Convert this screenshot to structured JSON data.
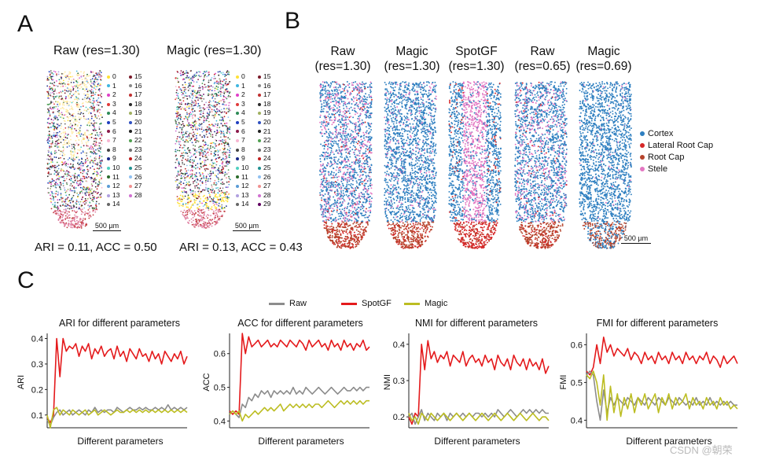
{
  "panel_a": {
    "letter": "A",
    "raw_title": "Raw (res=1.30)",
    "magic_title": "Magic (res=1.30)",
    "raw_metric": "ARI = 0.11, ACC =  0.50",
    "magic_metric": "ARI = 0.13, ACC =  0.43",
    "scale": "500 µm",
    "raw_legend_col1": [
      "0",
      "1",
      "2",
      "3",
      "4",
      "5",
      "6",
      "7",
      "8",
      "9",
      "10",
      "11",
      "12",
      "13",
      "14"
    ],
    "raw_legend_col2": [
      "15",
      "16",
      "17",
      "18",
      "19",
      "20",
      "21",
      "22",
      "23",
      "24",
      "25",
      "26",
      "27",
      "28"
    ],
    "magic_legend_col1": [
      "0",
      "1",
      "2",
      "3",
      "4",
      "5",
      "6",
      "7",
      "8",
      "9",
      "10",
      "11",
      "12",
      "13",
      "14"
    ],
    "magic_legend_col2": [
      "15",
      "16",
      "17",
      "18",
      "19",
      "20",
      "21",
      "22",
      "23",
      "24",
      "25",
      "26",
      "27",
      "28",
      "29"
    ],
    "cluster_colors": [
      "#ffe135",
      "#3fb6e0",
      "#e040c8",
      "#e03a3a",
      "#2e8b57",
      "#1f3fbf",
      "#8b1a4a",
      "#f7b6d2",
      "#444444",
      "#1a2a8a",
      "#4fd0c0",
      "#2a6b2a",
      "#5a9bd6",
      "#b0a0e0",
      "#666666",
      "#7a1a2a",
      "#888888",
      "#c03030",
      "#2a2a2a",
      "#a0b060",
      "#3050c0",
      "#202020",
      "#50a050",
      "#707070",
      "#c02020",
      "#209090",
      "#90c0f0",
      "#f09090",
      "#d070d0",
      "#600060"
    ]
  },
  "panel_b": {
    "letter": "B",
    "columns": [
      {
        "line1": "Raw",
        "line2": "(res=1.30)"
      },
      {
        "line1": "Magic",
        "line2": "(res=1.30)"
      },
      {
        "line1": "SpotGF",
        "line2": "(res=1.30)"
      },
      {
        "line1": "Raw",
        "line2": "(res=0.65)"
      },
      {
        "line1": "Magic",
        "line2": "(res=0.69)"
      }
    ],
    "legend": [
      {
        "label": "Cortex",
        "color": "#2e7fc0"
      },
      {
        "label": "Lateral Root Cap",
        "color": "#d62728"
      },
      {
        "label": "Root Cap",
        "color": "#b5432b"
      },
      {
        "label": "Stele",
        "color": "#e377c2"
      }
    ],
    "scale": "500 µm"
  },
  "panel_c": {
    "letter": "C",
    "legend": [
      {
        "label": "Raw",
        "color": "#8c8c8c"
      },
      {
        "label": "SpotGF",
        "color": "#e41a1c"
      },
      {
        "label": "Magic",
        "color": "#bcbd22"
      }
    ],
    "xlabel": "Different parameters"
  },
  "chart_data": [
    {
      "type": "line",
      "title": "ARI for different parameters",
      "xlabel": "Different parameters",
      "ylabel": "ARI",
      "ylim": [
        0.05,
        0.42
      ],
      "yticks": [
        0.1,
        0.2,
        0.3,
        0.4
      ],
      "ytick_labels": [
        "0.1",
        "0.2",
        "0.3",
        "0.4"
      ],
      "series": [
        {
          "name": "SpotGF",
          "color": "#e41a1c",
          "values": [
            0.09,
            0.07,
            0.1,
            0.4,
            0.25,
            0.4,
            0.35,
            0.37,
            0.36,
            0.38,
            0.33,
            0.37,
            0.35,
            0.38,
            0.32,
            0.36,
            0.34,
            0.37,
            0.33,
            0.35,
            0.36,
            0.32,
            0.37,
            0.33,
            0.35,
            0.31,
            0.36,
            0.34,
            0.32,
            0.36,
            0.33,
            0.34,
            0.31,
            0.35,
            0.32,
            0.34,
            0.3,
            0.35,
            0.33,
            0.31,
            0.34,
            0.32,
            0.35,
            0.3,
            0.33
          ]
        },
        {
          "name": "Raw",
          "color": "#8c8c8c",
          "values": [
            0.08,
            0.06,
            0.09,
            0.11,
            0.12,
            0.1,
            0.11,
            0.12,
            0.1,
            0.11,
            0.12,
            0.11,
            0.1,
            0.12,
            0.11,
            0.13,
            0.11,
            0.12,
            0.11,
            0.12,
            0.12,
            0.11,
            0.13,
            0.12,
            0.11,
            0.12,
            0.13,
            0.12,
            0.12,
            0.13,
            0.12,
            0.13,
            0.12,
            0.12,
            0.13,
            0.12,
            0.13,
            0.12,
            0.14,
            0.12,
            0.13,
            0.12,
            0.13,
            0.12,
            0.13
          ]
        },
        {
          "name": "Magic",
          "color": "#bcbd22",
          "values": [
            0.1,
            0.05,
            0.12,
            0.13,
            0.1,
            0.12,
            0.11,
            0.1,
            0.12,
            0.11,
            0.1,
            0.11,
            0.12,
            0.1,
            0.11,
            0.12,
            0.1,
            0.11,
            0.12,
            0.11,
            0.1,
            0.11,
            0.12,
            0.11,
            0.11,
            0.12,
            0.11,
            0.12,
            0.11,
            0.12,
            0.11,
            0.12,
            0.11,
            0.12,
            0.11,
            0.12,
            0.11,
            0.12,
            0.11,
            0.12,
            0.11,
            0.12,
            0.11,
            0.12,
            0.11
          ]
        }
      ]
    },
    {
      "type": "line",
      "title": "ACC for different parameters",
      "xlabel": "Different parameters",
      "ylabel": "ACC",
      "ylim": [
        0.38,
        0.66
      ],
      "yticks": [
        0.4,
        0.5,
        0.6
      ],
      "ytick_labels": [
        "0.4",
        "0.5",
        "0.6"
      ],
      "series": [
        {
          "name": "SpotGF",
          "color": "#e41a1c",
          "values": [
            0.43,
            0.42,
            0.43,
            0.42,
            0.66,
            0.6,
            0.65,
            0.62,
            0.63,
            0.64,
            0.62,
            0.63,
            0.64,
            0.62,
            0.63,
            0.62,
            0.64,
            0.63,
            0.62,
            0.64,
            0.63,
            0.62,
            0.64,
            0.63,
            0.61,
            0.64,
            0.62,
            0.63,
            0.64,
            0.62,
            0.63,
            0.61,
            0.64,
            0.62,
            0.63,
            0.61,
            0.64,
            0.62,
            0.63,
            0.61,
            0.63,
            0.62,
            0.64,
            0.61,
            0.62
          ]
        },
        {
          "name": "Raw",
          "color": "#8c8c8c",
          "values": [
            0.42,
            0.43,
            0.42,
            0.41,
            0.45,
            0.44,
            0.47,
            0.46,
            0.48,
            0.47,
            0.49,
            0.48,
            0.49,
            0.47,
            0.49,
            0.48,
            0.49,
            0.48,
            0.49,
            0.48,
            0.5,
            0.48,
            0.49,
            0.48,
            0.5,
            0.49,
            0.48,
            0.49,
            0.5,
            0.49,
            0.48,
            0.49,
            0.5,
            0.49,
            0.48,
            0.49,
            0.5,
            0.49,
            0.49,
            0.5,
            0.49,
            0.5,
            0.49,
            0.5,
            0.5
          ]
        },
        {
          "name": "Magic",
          "color": "#bcbd22",
          "values": [
            0.42,
            0.43,
            0.42,
            0.43,
            0.4,
            0.42,
            0.41,
            0.42,
            0.43,
            0.42,
            0.43,
            0.44,
            0.43,
            0.44,
            0.43,
            0.44,
            0.45,
            0.43,
            0.44,
            0.45,
            0.44,
            0.45,
            0.44,
            0.45,
            0.44,
            0.45,
            0.44,
            0.45,
            0.45,
            0.44,
            0.45,
            0.46,
            0.45,
            0.44,
            0.45,
            0.46,
            0.45,
            0.46,
            0.45,
            0.46,
            0.45,
            0.46,
            0.45,
            0.46,
            0.46
          ]
        }
      ]
    },
    {
      "type": "line",
      "title": "NMI for different parameters",
      "xlabel": "Different parameters",
      "ylabel": "NMI",
      "ylim": [
        0.17,
        0.43
      ],
      "yticks": [
        0.2,
        0.3,
        0.4
      ],
      "ytick_labels": [
        "0.2",
        "0.3",
        "0.4"
      ],
      "series": [
        {
          "name": "SpotGF",
          "color": "#e41a1c",
          "values": [
            0.2,
            0.18,
            0.21,
            0.2,
            0.4,
            0.33,
            0.41,
            0.36,
            0.38,
            0.35,
            0.37,
            0.36,
            0.38,
            0.34,
            0.37,
            0.36,
            0.35,
            0.38,
            0.34,
            0.36,
            0.37,
            0.35,
            0.36,
            0.34,
            0.37,
            0.35,
            0.36,
            0.33,
            0.37,
            0.35,
            0.34,
            0.36,
            0.33,
            0.37,
            0.35,
            0.34,
            0.36,
            0.33,
            0.36,
            0.34,
            0.35,
            0.33,
            0.36,
            0.32,
            0.34
          ]
        },
        {
          "name": "Raw",
          "color": "#8c8c8c",
          "values": [
            0.2,
            0.21,
            0.18,
            0.2,
            0.22,
            0.19,
            0.21,
            0.2,
            0.19,
            0.21,
            0.2,
            0.21,
            0.19,
            0.21,
            0.2,
            0.21,
            0.2,
            0.21,
            0.2,
            0.21,
            0.2,
            0.21,
            0.21,
            0.2,
            0.21,
            0.2,
            0.21,
            0.2,
            0.22,
            0.21,
            0.2,
            0.21,
            0.22,
            0.21,
            0.2,
            0.21,
            0.22,
            0.21,
            0.22,
            0.21,
            0.22,
            0.21,
            0.22,
            0.21,
            0.21
          ]
        },
        {
          "name": "Magic",
          "color": "#bcbd22",
          "values": [
            0.21,
            0.19,
            0.2,
            0.18,
            0.21,
            0.2,
            0.19,
            0.21,
            0.2,
            0.19,
            0.2,
            0.21,
            0.2,
            0.19,
            0.2,
            0.21,
            0.2,
            0.19,
            0.2,
            0.21,
            0.2,
            0.19,
            0.2,
            0.21,
            0.2,
            0.19,
            0.2,
            0.21,
            0.2,
            0.19,
            0.2,
            0.21,
            0.2,
            0.19,
            0.2,
            0.21,
            0.2,
            0.19,
            0.2,
            0.21,
            0.2,
            0.19,
            0.2,
            0.2,
            0.19
          ]
        }
      ]
    },
    {
      "type": "line",
      "title": "FMI for different parameters",
      "xlabel": "Different parameters",
      "ylabel": "FMI",
      "ylim": [
        0.38,
        0.63
      ],
      "yticks": [
        0.4,
        0.5,
        0.6
      ],
      "ytick_labels": [
        "0.4",
        "0.5",
        "0.6"
      ],
      "series": [
        {
          "name": "SpotGF",
          "color": "#e41a1c",
          "values": [
            0.53,
            0.52,
            0.54,
            0.6,
            0.55,
            0.62,
            0.58,
            0.6,
            0.57,
            0.59,
            0.58,
            0.57,
            0.59,
            0.56,
            0.58,
            0.57,
            0.55,
            0.58,
            0.56,
            0.57,
            0.55,
            0.58,
            0.56,
            0.57,
            0.55,
            0.58,
            0.56,
            0.57,
            0.55,
            0.58,
            0.56,
            0.57,
            0.55,
            0.57,
            0.56,
            0.58,
            0.55,
            0.57,
            0.56,
            0.54,
            0.57,
            0.55,
            0.56,
            0.57,
            0.55
          ]
        },
        {
          "name": "Raw",
          "color": "#8c8c8c",
          "values": [
            0.52,
            0.53,
            0.52,
            0.45,
            0.4,
            0.48,
            0.42,
            0.46,
            0.44,
            0.46,
            0.45,
            0.44,
            0.46,
            0.45,
            0.44,
            0.46,
            0.45,
            0.44,
            0.46,
            0.45,
            0.44,
            0.46,
            0.45,
            0.44,
            0.46,
            0.45,
            0.44,
            0.46,
            0.45,
            0.44,
            0.45,
            0.44,
            0.46,
            0.44,
            0.45,
            0.44,
            0.46,
            0.44,
            0.45,
            0.44,
            0.45,
            0.44,
            0.45,
            0.44,
            0.44
          ]
        },
        {
          "name": "Magic",
          "color": "#bcbd22",
          "values": [
            0.52,
            0.51,
            0.53,
            0.5,
            0.44,
            0.52,
            0.4,
            0.49,
            0.42,
            0.47,
            0.41,
            0.46,
            0.43,
            0.47,
            0.42,
            0.46,
            0.44,
            0.47,
            0.43,
            0.45,
            0.47,
            0.42,
            0.46,
            0.44,
            0.47,
            0.43,
            0.46,
            0.44,
            0.45,
            0.47,
            0.43,
            0.46,
            0.44,
            0.45,
            0.43,
            0.46,
            0.44,
            0.45,
            0.43,
            0.46,
            0.44,
            0.45,
            0.43,
            0.44,
            0.43
          ]
        }
      ]
    }
  ],
  "watermark": "CSDN @朝荣"
}
